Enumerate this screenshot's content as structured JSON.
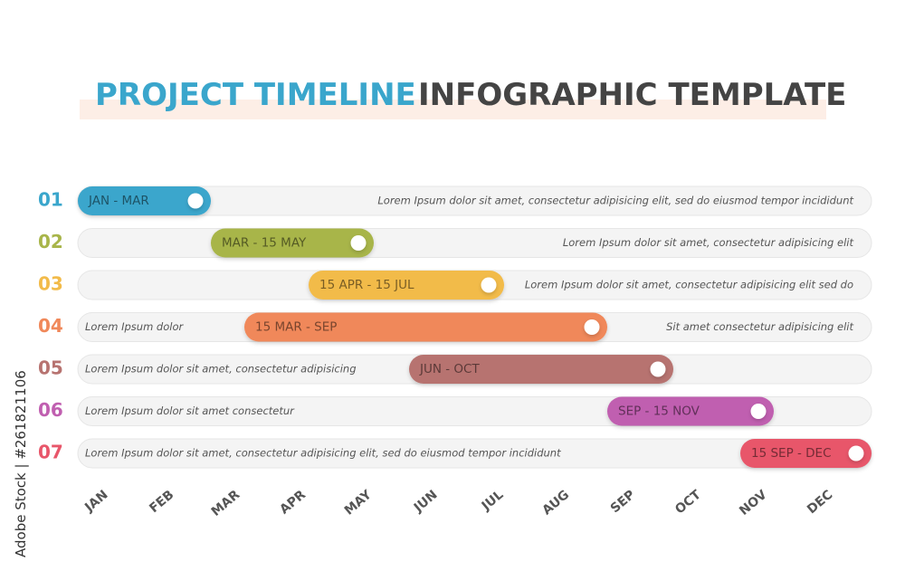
{
  "title": {
    "part1": "PROJECT TIMELINE",
    "part2": "INFOGRAPHIC TEMPLATE"
  },
  "rows": [
    {
      "number": "01",
      "period": "JAN - MAR",
      "right_text": "Lorem Ipsum dolor sit amet, consectetur adipisicing elit, sed do eiusmod tempor incididunt"
    },
    {
      "number": "02",
      "period": "MAR - 15 MAY",
      "right_text": "Lorem Ipsum dolor sit amet, consectetur adipisicing elit"
    },
    {
      "number": "03",
      "period": "15 APR - 15 JUL",
      "right_text": "Lorem Ipsum dolor sit amet, consectetur adipisicing elit sed do"
    },
    {
      "number": "04",
      "period": "15 MAR - SEP",
      "left_text": "Lorem Ipsum dolor",
      "right_text": "Sit amet consectetur adipisicing elit"
    },
    {
      "number": "05",
      "period": "JUN - OCT",
      "left_text": "Lorem Ipsum dolor sit amet, consectetur adipisicing"
    },
    {
      "number": "06",
      "period": "SEP - 15 NOV",
      "left_text": "Lorem Ipsum dolor sit amet consectetur"
    },
    {
      "number": "07",
      "period": "15 SEP - DEC",
      "left_text": "Lorem Ipsum dolor sit amet, consectetur adipisicing elit, sed do eiusmod tempor incididunt"
    }
  ],
  "months": [
    "JAN",
    "FEB",
    "MAR",
    "APR",
    "MAY",
    "JUN",
    "JUL",
    "AUG",
    "SEP",
    "OCT",
    "NOV",
    "DEC"
  ],
  "watermark": "Adobe Stock | #261821106"
}
